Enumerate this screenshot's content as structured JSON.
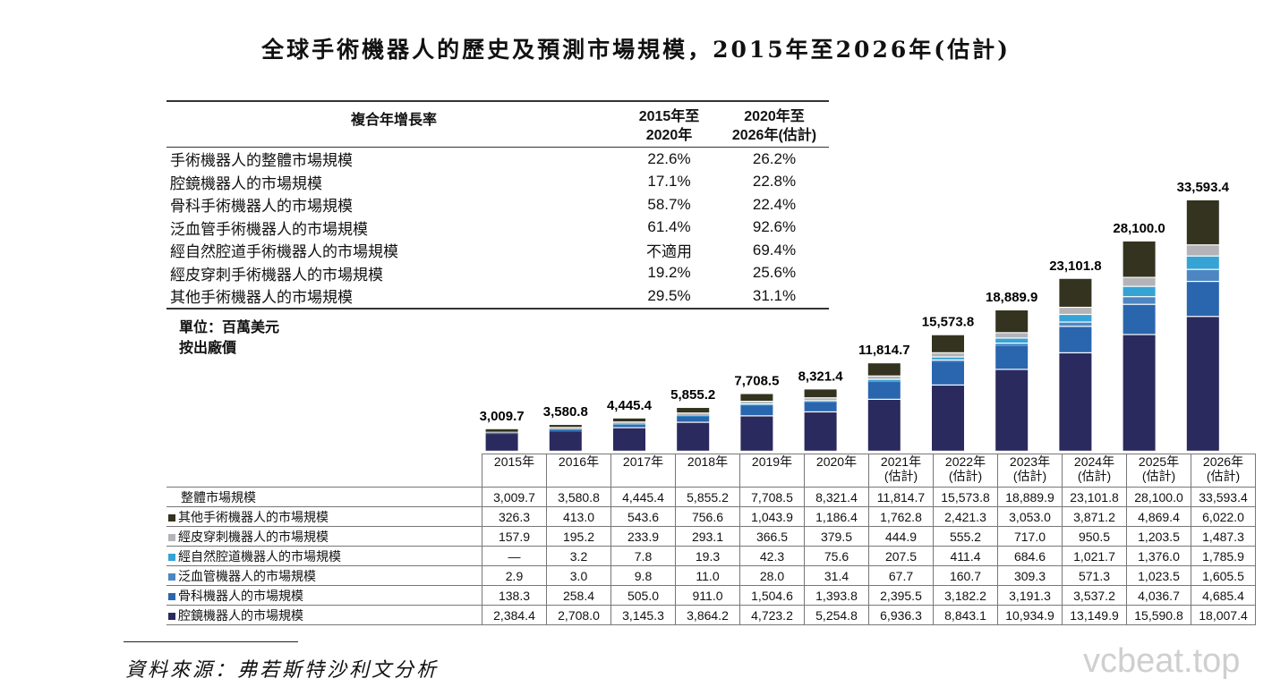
{
  "title": "全球手術機器人的歷史及預測市場規模，2015年至2026年(估計)",
  "cagr_table": {
    "headers": [
      "複合年增長率",
      "2015年至\n2020年",
      "2020年至\n2026年(估計)"
    ],
    "rows": [
      [
        "手術機器人的整體市場規模",
        "22.6%",
        "26.2%"
      ],
      [
        "腔鏡機器人的市場規模",
        "17.1%",
        "22.8%"
      ],
      [
        "骨科手術機器人的市場規模",
        "58.7%",
        "22.4%"
      ],
      [
        "泛血管手術機器人的市場規模",
        "61.4%",
        "92.6%"
      ],
      [
        "經自然腔道手術機器人的市場規模",
        "不適用",
        "69.4%"
      ],
      [
        "經皮穿刺手術機器人的市場規模",
        "19.2%",
        "25.6%"
      ],
      [
        "其他手術機器人的市場規模",
        "29.5%",
        "31.1%"
      ]
    ]
  },
  "unit": "單位：百萬美元",
  "price_basis": "按出廠價",
  "source": "資料來源：弗若斯特沙利文分析",
  "watermark": "vcbeat.top",
  "chart_data": {
    "type": "stacked-bar",
    "categories": [
      "2015年",
      "2016年",
      "2017年",
      "2018年",
      "2019年",
      "2020年",
      "2021年\n(估計)",
      "2022年\n(估計)",
      "2023年\n(估計)",
      "2024年\n(估計)",
      "2025年\n(估計)",
      "2026年\n(估計)"
    ],
    "total_label": "整體市場規模",
    "totals": [
      "3,009.7",
      "3,580.8",
      "4,445.4",
      "5,855.2",
      "7,708.5",
      "8,321.4",
      "11,814.7",
      "15,573.8",
      "18,889.9",
      "23,101.8",
      "28,100.0",
      "33,593.4"
    ],
    "series": [
      {
        "name": "其他手術機器人的市場規模",
        "color": "#33331f",
        "values": [
          326.3,
          413.0,
          543.6,
          756.6,
          1043.9,
          1186.4,
          1762.8,
          2421.3,
          3053.0,
          3871.2,
          4869.4,
          6022.0
        ]
      },
      {
        "name": "經皮穿刺機器人的市場規模",
        "color": "#b3b3b8",
        "values": [
          157.9,
          195.2,
          233.9,
          293.1,
          366.5,
          379.5,
          444.9,
          555.2,
          717.0,
          950.5,
          1203.5,
          1487.3
        ]
      },
      {
        "name": "經自然腔道機器人的市場規模",
        "color": "#36a3d5",
        "values": [
          null,
          3.2,
          7.8,
          19.3,
          42.3,
          75.6,
          207.5,
          411.4,
          684.6,
          1021.7,
          1376.0,
          1785.9
        ]
      },
      {
        "name": "泛血管機器人的市場規模",
        "color": "#4d86c2",
        "values": [
          2.9,
          3.0,
          9.8,
          11.0,
          28.0,
          31.4,
          67.7,
          160.7,
          309.3,
          571.3,
          1023.5,
          1605.5
        ]
      },
      {
        "name": "骨科機器人的市場規模",
        "color": "#2a66ae",
        "values": [
          138.3,
          258.4,
          505.0,
          911.0,
          1504.6,
          1393.8,
          2395.5,
          3182.2,
          3191.3,
          3537.2,
          4036.7,
          4685.4
        ]
      },
      {
        "name": "腔鏡機器人的市場規模",
        "color": "#2b2a5e",
        "values": [
          2384.4,
          2708.0,
          3145.3,
          3864.2,
          4723.2,
          5254.8,
          6936.3,
          8843.1,
          10934.9,
          13149.9,
          15590.8,
          18007.4
        ]
      }
    ],
    "display_values": [
      [
        "326.3",
        "413.0",
        "543.6",
        "756.6",
        "1,043.9",
        "1,186.4",
        "1,762.8",
        "2,421.3",
        "3,053.0",
        "3,871.2",
        "4,869.4",
        "6,022.0"
      ],
      [
        "157.9",
        "195.2",
        "233.9",
        "293.1",
        "366.5",
        "379.5",
        "444.9",
        "555.2",
        "717.0",
        "950.5",
        "1,203.5",
        "1,487.3"
      ],
      [
        "—",
        "3.2",
        "7.8",
        "19.3",
        "42.3",
        "75.6",
        "207.5",
        "411.4",
        "684.6",
        "1,021.7",
        "1,376.0",
        "1,785.9"
      ],
      [
        "2.9",
        "3.0",
        "9.8",
        "11.0",
        "28.0",
        "31.4",
        "67.7",
        "160.7",
        "309.3",
        "571.3",
        "1,023.5",
        "1,605.5"
      ],
      [
        "138.3",
        "258.4",
        "505.0",
        "911.0",
        "1,504.6",
        "1,393.8",
        "2,395.5",
        "3,182.2",
        "3,191.3",
        "3,537.2",
        "4,036.7",
        "4,685.4"
      ],
      [
        "2,384.4",
        "2,708.0",
        "3,145.3",
        "3,864.2",
        "4,723.2",
        "5,254.8",
        "6,936.3",
        "8,843.1",
        "10,934.9",
        "13,149.9",
        "15,590.8",
        "18,007.4"
      ]
    ]
  }
}
